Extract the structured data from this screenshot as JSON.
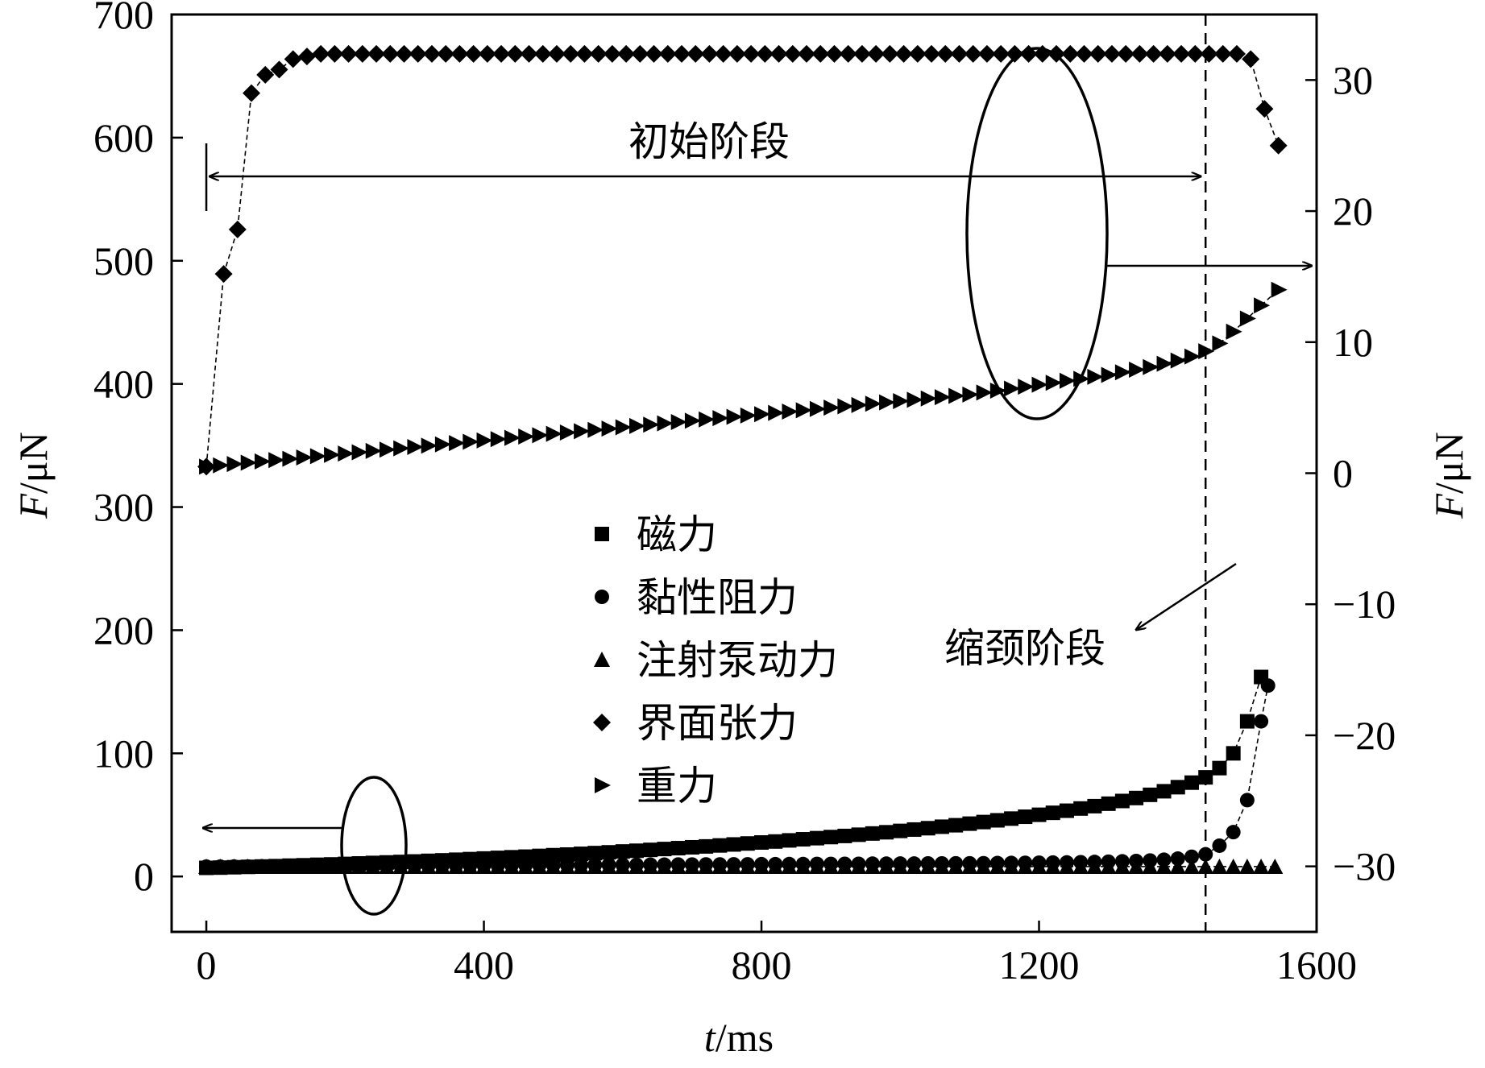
{
  "chart_data": {
    "type": "scatter",
    "xlabel": {
      "var": "t",
      "unit": "/ms"
    },
    "ylabel_left": {
      "var": "F",
      "unit": "/μN"
    },
    "ylabel_right": {
      "var": "F",
      "unit": "/μN"
    },
    "xlim": [
      -50,
      1600
    ],
    "ylim_left": [
      -45,
      700
    ],
    "ylim_right": [
      -35,
      35
    ],
    "x_ticks": [
      0,
      400,
      800,
      1200,
      1600
    ],
    "y_left_ticks": [
      0,
      100,
      200,
      300,
      400,
      500,
      600,
      700
    ],
    "y_right_ticks": [
      -30,
      -20,
      -10,
      0,
      10,
      20,
      30
    ],
    "tick_labels": {
      "x": [
        "0",
        "400",
        "800",
        "1200",
        "1600"
      ],
      "y_left": [
        "0",
        "100",
        "200",
        "300",
        "400",
        "500",
        "600",
        "700"
      ],
      "y_right": [
        "−30",
        "−20",
        "−10",
        "0",
        "10",
        "20",
        "30"
      ]
    },
    "grid": false,
    "legend_placement": "center",
    "annotations": {
      "initial_stage": "初始阶段",
      "necking_stage": "缩颈阶段",
      "stage_boundary_x": 1440
    },
    "series": [
      {
        "name": "磁力",
        "marker": "square",
        "axis": "left",
        "x": [
          0,
          20,
          40,
          60,
          80,
          100,
          120,
          140,
          160,
          180,
          200,
          220,
          240,
          260,
          280,
          300,
          320,
          340,
          360,
          380,
          400,
          420,
          440,
          460,
          480,
          500,
          520,
          540,
          560,
          580,
          600,
          620,
          640,
          660,
          680,
          700,
          720,
          740,
          760,
          780,
          800,
          820,
          840,
          860,
          880,
          900,
          920,
          940,
          960,
          980,
          1000,
          1020,
          1040,
          1060,
          1080,
          1100,
          1120,
          1140,
          1160,
          1180,
          1200,
          1220,
          1240,
          1260,
          1280,
          1300,
          1320,
          1340,
          1360,
          1380,
          1400,
          1420,
          1440,
          1460,
          1480,
          1500,
          1520
        ],
        "y": [
          7,
          7.2,
          7.5,
          7.8,
          8.1,
          8.4,
          8.8,
          9.1,
          9.5,
          9.8,
          10.2,
          10.6,
          11,
          11.4,
          11.8,
          12.2,
          12.7,
          13.1,
          13.6,
          14.1,
          14.6,
          15.1,
          15.6,
          16.1,
          16.7,
          17.3,
          17.8,
          18.4,
          19,
          19.6,
          20.3,
          20.9,
          21.6,
          22.3,
          23,
          23.7,
          24.4,
          25.2,
          26,
          26.8,
          27.6,
          28.4,
          29.3,
          30.2,
          31.1,
          32,
          32.9,
          33.9,
          34.9,
          35.9,
          37,
          38.1,
          39.2,
          40.4,
          41.6,
          42.9,
          44.2,
          45.6,
          47,
          48.5,
          50.1,
          51.7,
          53.4,
          55.2,
          57.1,
          59.1,
          61.3,
          63.7,
          66.3,
          69.2,
          72.5,
          76.2,
          80.5,
          88,
          100,
          126,
          162
        ]
      },
      {
        "name": "黏性阻力",
        "marker": "circle",
        "axis": "left",
        "x": [
          0,
          20,
          40,
          60,
          80,
          100,
          120,
          140,
          160,
          180,
          200,
          220,
          240,
          260,
          280,
          300,
          320,
          340,
          360,
          380,
          400,
          420,
          440,
          460,
          480,
          500,
          520,
          540,
          560,
          580,
          600,
          620,
          640,
          660,
          680,
          700,
          720,
          740,
          760,
          780,
          800,
          820,
          840,
          860,
          880,
          900,
          920,
          940,
          960,
          980,
          1000,
          1020,
          1040,
          1060,
          1080,
          1100,
          1120,
          1140,
          1160,
          1180,
          1200,
          1220,
          1240,
          1260,
          1280,
          1300,
          1320,
          1340,
          1360,
          1380,
          1400,
          1420,
          1440,
          1460,
          1480,
          1500,
          1520,
          1530
        ],
        "y": [
          8,
          8,
          8.1,
          8.1,
          8.2,
          8.2,
          8.3,
          8.3,
          8.4,
          8.4,
          8.5,
          8.5,
          8.6,
          8.6,
          8.7,
          8.7,
          8.8,
          8.8,
          8.9,
          8.9,
          9,
          9,
          9.1,
          9.1,
          9.2,
          9.2,
          9.3,
          9.3,
          9.4,
          9.4,
          9.5,
          9.5,
          9.6,
          9.6,
          9.7,
          9.7,
          9.8,
          9.8,
          9.9,
          9.9,
          10,
          10,
          10.1,
          10.1,
          10.2,
          10.2,
          10.3,
          10.3,
          10.4,
          10.4,
          10.5,
          10.5,
          10.6,
          10.6,
          10.7,
          10.7,
          10.8,
          10.9,
          11,
          11.1,
          11.2,
          11.3,
          11.4,
          11.6,
          11.8,
          12,
          12.3,
          12.6,
          13,
          13.6,
          14.5,
          16,
          18,
          25,
          36,
          62,
          126,
          155
        ]
      },
      {
        "name": "注射泵动力",
        "marker": "triangle-up",
        "axis": "left",
        "x": [
          0,
          20,
          40,
          60,
          80,
          100,
          120,
          140,
          160,
          180,
          200,
          220,
          240,
          260,
          280,
          300,
          320,
          340,
          360,
          380,
          400,
          420,
          440,
          460,
          480,
          500,
          520,
          540,
          560,
          580,
          600,
          620,
          640,
          660,
          680,
          700,
          720,
          740,
          760,
          780,
          800,
          820,
          840,
          860,
          880,
          900,
          920,
          940,
          960,
          980,
          1000,
          1020,
          1040,
          1060,
          1080,
          1100,
          1120,
          1140,
          1160,
          1180,
          1200,
          1220,
          1240,
          1260,
          1280,
          1300,
          1320,
          1340,
          1360,
          1380,
          1400,
          1420,
          1440,
          1460,
          1480,
          1500,
          1520,
          1540
        ],
        "y": [
          8,
          8,
          8,
          8,
          8,
          8,
          8,
          8,
          8,
          8,
          8,
          8,
          8,
          8,
          8,
          8,
          8,
          8,
          8,
          8,
          8,
          8,
          8,
          8,
          8,
          8,
          8,
          8,
          8,
          8,
          8,
          8,
          8,
          8,
          8,
          8,
          8,
          8,
          8,
          8,
          8,
          8,
          8,
          8,
          8,
          8,
          8,
          8,
          8,
          8,
          8,
          8,
          8,
          8,
          8,
          8,
          8,
          8,
          8,
          8,
          8,
          8,
          8,
          8,
          8,
          8,
          8,
          8,
          8,
          8,
          8,
          8,
          8,
          8,
          8,
          8,
          8,
          8
        ]
      },
      {
        "name": "界面张力",
        "marker": "diamond",
        "axis": "right",
        "x": [
          0,
          25,
          45,
          65,
          85,
          105,
          125,
          145,
          165,
          185,
          205,
          225,
          245,
          265,
          285,
          305,
          325,
          345,
          365,
          385,
          405,
          425,
          445,
          465,
          485,
          505,
          525,
          545,
          565,
          585,
          605,
          625,
          645,
          665,
          685,
          705,
          725,
          745,
          765,
          785,
          805,
          825,
          845,
          865,
          885,
          905,
          925,
          945,
          965,
          985,
          1005,
          1025,
          1045,
          1065,
          1085,
          1105,
          1125,
          1145,
          1165,
          1185,
          1205,
          1225,
          1245,
          1265,
          1285,
          1305,
          1325,
          1345,
          1365,
          1385,
          1405,
          1425,
          1445,
          1465,
          1485,
          1505,
          1525,
          1545
        ],
        "y": [
          0.5,
          15.2,
          18.6,
          29,
          30.4,
          30.8,
          31.6,
          31.8,
          32,
          32,
          32,
          32,
          32,
          32,
          32,
          32,
          32,
          32,
          32,
          32,
          32,
          32,
          32,
          32,
          32,
          32,
          32,
          32,
          32,
          32,
          32,
          32,
          32,
          32,
          32,
          32,
          32,
          32,
          32,
          32,
          32,
          32,
          32,
          32,
          32,
          32,
          32,
          32,
          32,
          32,
          32,
          32,
          32,
          32,
          32,
          32,
          32,
          32,
          32,
          32,
          32,
          32,
          32,
          32,
          32,
          32,
          32,
          32,
          32,
          32,
          32,
          32,
          32,
          32,
          32,
          31.6,
          27.8,
          25
        ]
      },
      {
        "name": "重力",
        "marker": "triangle-right",
        "axis": "right",
        "x": [
          0,
          20,
          40,
          60,
          80,
          100,
          120,
          140,
          160,
          180,
          200,
          220,
          240,
          260,
          280,
          300,
          320,
          340,
          360,
          380,
          400,
          420,
          440,
          460,
          480,
          500,
          520,
          540,
          560,
          580,
          600,
          620,
          640,
          660,
          680,
          700,
          720,
          740,
          760,
          780,
          800,
          820,
          840,
          860,
          880,
          900,
          920,
          940,
          960,
          980,
          1000,
          1020,
          1040,
          1060,
          1080,
          1100,
          1120,
          1140,
          1160,
          1180,
          1200,
          1220,
          1240,
          1260,
          1280,
          1300,
          1320,
          1340,
          1360,
          1380,
          1400,
          1420,
          1440,
          1460,
          1480,
          1500,
          1520,
          1545
        ],
        "y": [
          0.5,
          0.6,
          0.7,
          0.8,
          0.9,
          1,
          1.1,
          1.2,
          1.3,
          1.4,
          1.5,
          1.6,
          1.7,
          1.8,
          1.9,
          2,
          2.1,
          2.2,
          2.3,
          2.4,
          2.5,
          2.6,
          2.7,
          2.8,
          2.9,
          3,
          3.1,
          3.2,
          3.3,
          3.4,
          3.5,
          3.6,
          3.7,
          3.8,
          3.9,
          4,
          4.1,
          4.2,
          4.3,
          4.4,
          4.5,
          4.6,
          4.7,
          4.8,
          4.9,
          5,
          5.1,
          5.2,
          5.3,
          5.4,
          5.5,
          5.6,
          5.7,
          5.8,
          5.9,
          6,
          6.15,
          6.3,
          6.45,
          6.6,
          6.75,
          6.9,
          7.05,
          7.2,
          7.35,
          7.5,
          7.7,
          7.9,
          8.1,
          8.35,
          8.6,
          8.9,
          9.3,
          9.9,
          10.8,
          11.8,
          12.8,
          14
        ]
      }
    ]
  }
}
